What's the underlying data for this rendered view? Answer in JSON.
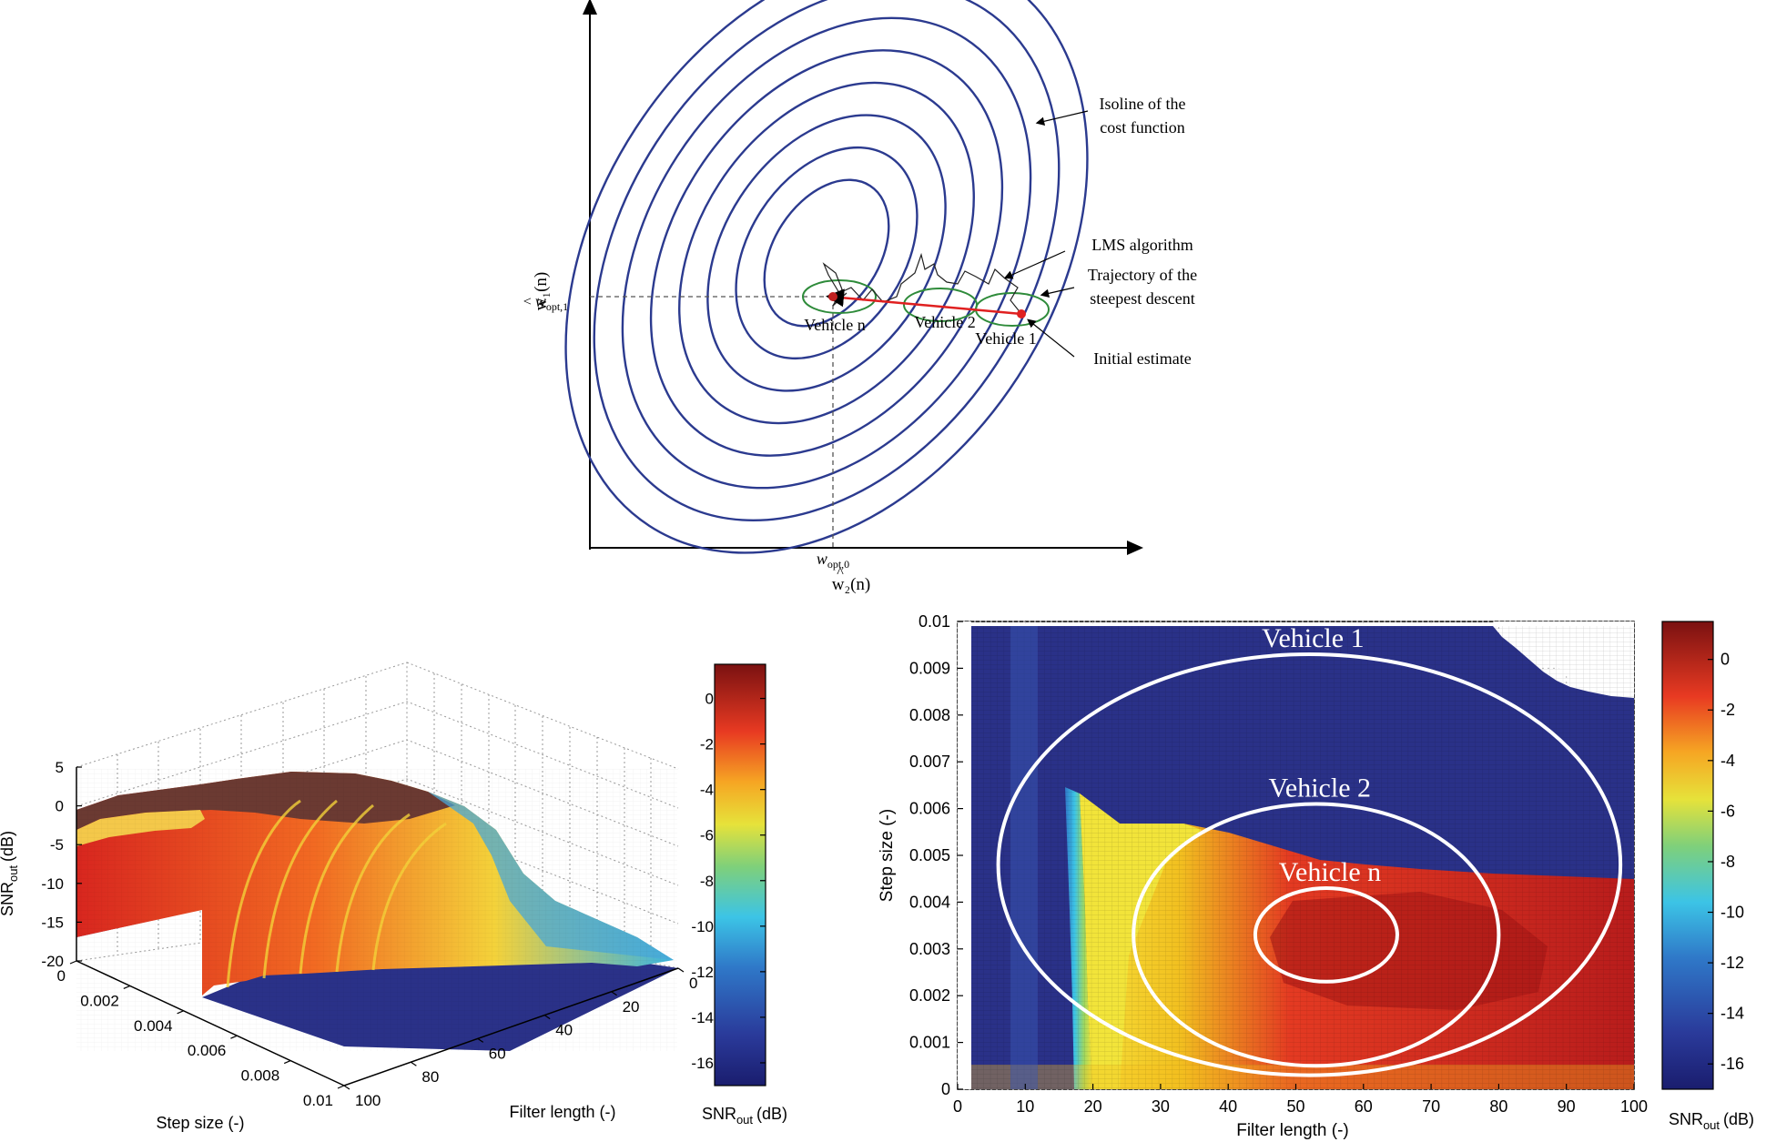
{
  "chart_data": [
    {
      "type": "diagram",
      "title": "",
      "axes": {
        "xlabel_hat": "^",
        "xlabel": "w₂(n)",
        "ylabel_hat": "^",
        "ylabel": "w₁(n)"
      },
      "ticks": {
        "x_opt": "w",
        "x_opt_sub": "opt,0",
        "y_opt": "w",
        "y_opt_sub": "opt,1"
      },
      "isoline_count": 8,
      "annotations": {
        "isoline_1": "Isoline of the",
        "isoline_2": "cost function",
        "lms": "LMS algorithm",
        "traj_1": "Trajectory of the",
        "traj_2": "steepest descent",
        "initial": "Initial estimate"
      },
      "vehicles": [
        "Vehicle n",
        "Vehicle 2",
        "Vehicle 1"
      ],
      "colors": {
        "isoline": "#2b3a8f",
        "vehicle": "#2e8b3a",
        "trajectory": "#e02020",
        "dashed": "#555555"
      }
    },
    {
      "type": "surface3d",
      "xlabel": "Step size (-)",
      "ylabel": "Filter length (-)",
      "zlabel": "SNR",
      "zlabel_sub": "out",
      "zlabel_unit": "(dB)",
      "step_ticks": [
        "0",
        "0.002",
        "0.004",
        "0.006",
        "0.008",
        "0.01"
      ],
      "filter_ticks": [
        "0",
        "20",
        "40",
        "60",
        "80",
        "100"
      ],
      "z_ticks": [
        "5",
        "0",
        "-5",
        "-10",
        "-15",
        "-20"
      ],
      "zlim": [
        -20,
        5
      ],
      "colorbar": {
        "label": "SNR",
        "label_sub": "out",
        "label_unit": "(dB)",
        "ticks": [
          "0",
          "-2",
          "-4",
          "-6",
          "-8",
          "-10",
          "-12",
          "-14",
          "-16"
        ],
        "range": [
          -17,
          1.5
        ]
      }
    },
    {
      "type": "heatmap",
      "xlabel": "Filter length (-)",
      "ylabel": "Step size (-)",
      "x_ticks": [
        "0",
        "10",
        "20",
        "30",
        "40",
        "50",
        "60",
        "70",
        "80",
        "90",
        "100"
      ],
      "y_ticks": [
        "0",
        "0.001",
        "0.002",
        "0.003",
        "0.004",
        "0.005",
        "0.006",
        "0.007",
        "0.008",
        "0.009",
        "0.01"
      ],
      "xlim": [
        0,
        100
      ],
      "ylim": [
        0,
        0.01
      ],
      "ellipses": [
        {
          "label": "Vehicle 1",
          "cx": 52,
          "cy": 0.0048,
          "rx": 46,
          "ry": 0.0045
        },
        {
          "label": "Vehicle 2",
          "cx": 53,
          "cy": 0.0033,
          "rx": 27,
          "ry": 0.0028
        },
        {
          "label": "Vehicle n",
          "cx": 54.5,
          "cy": 0.0033,
          "rx": 10.5,
          "ry": 0.001
        }
      ],
      "colorbar": {
        "label": "SNR",
        "label_sub": "out",
        "label_unit": "(dB)",
        "ticks": [
          "0",
          "-2",
          "-4",
          "-6",
          "-8",
          "-10",
          "-12",
          "-14",
          "-16"
        ],
        "range": [
          -17,
          1.5
        ]
      }
    }
  ]
}
